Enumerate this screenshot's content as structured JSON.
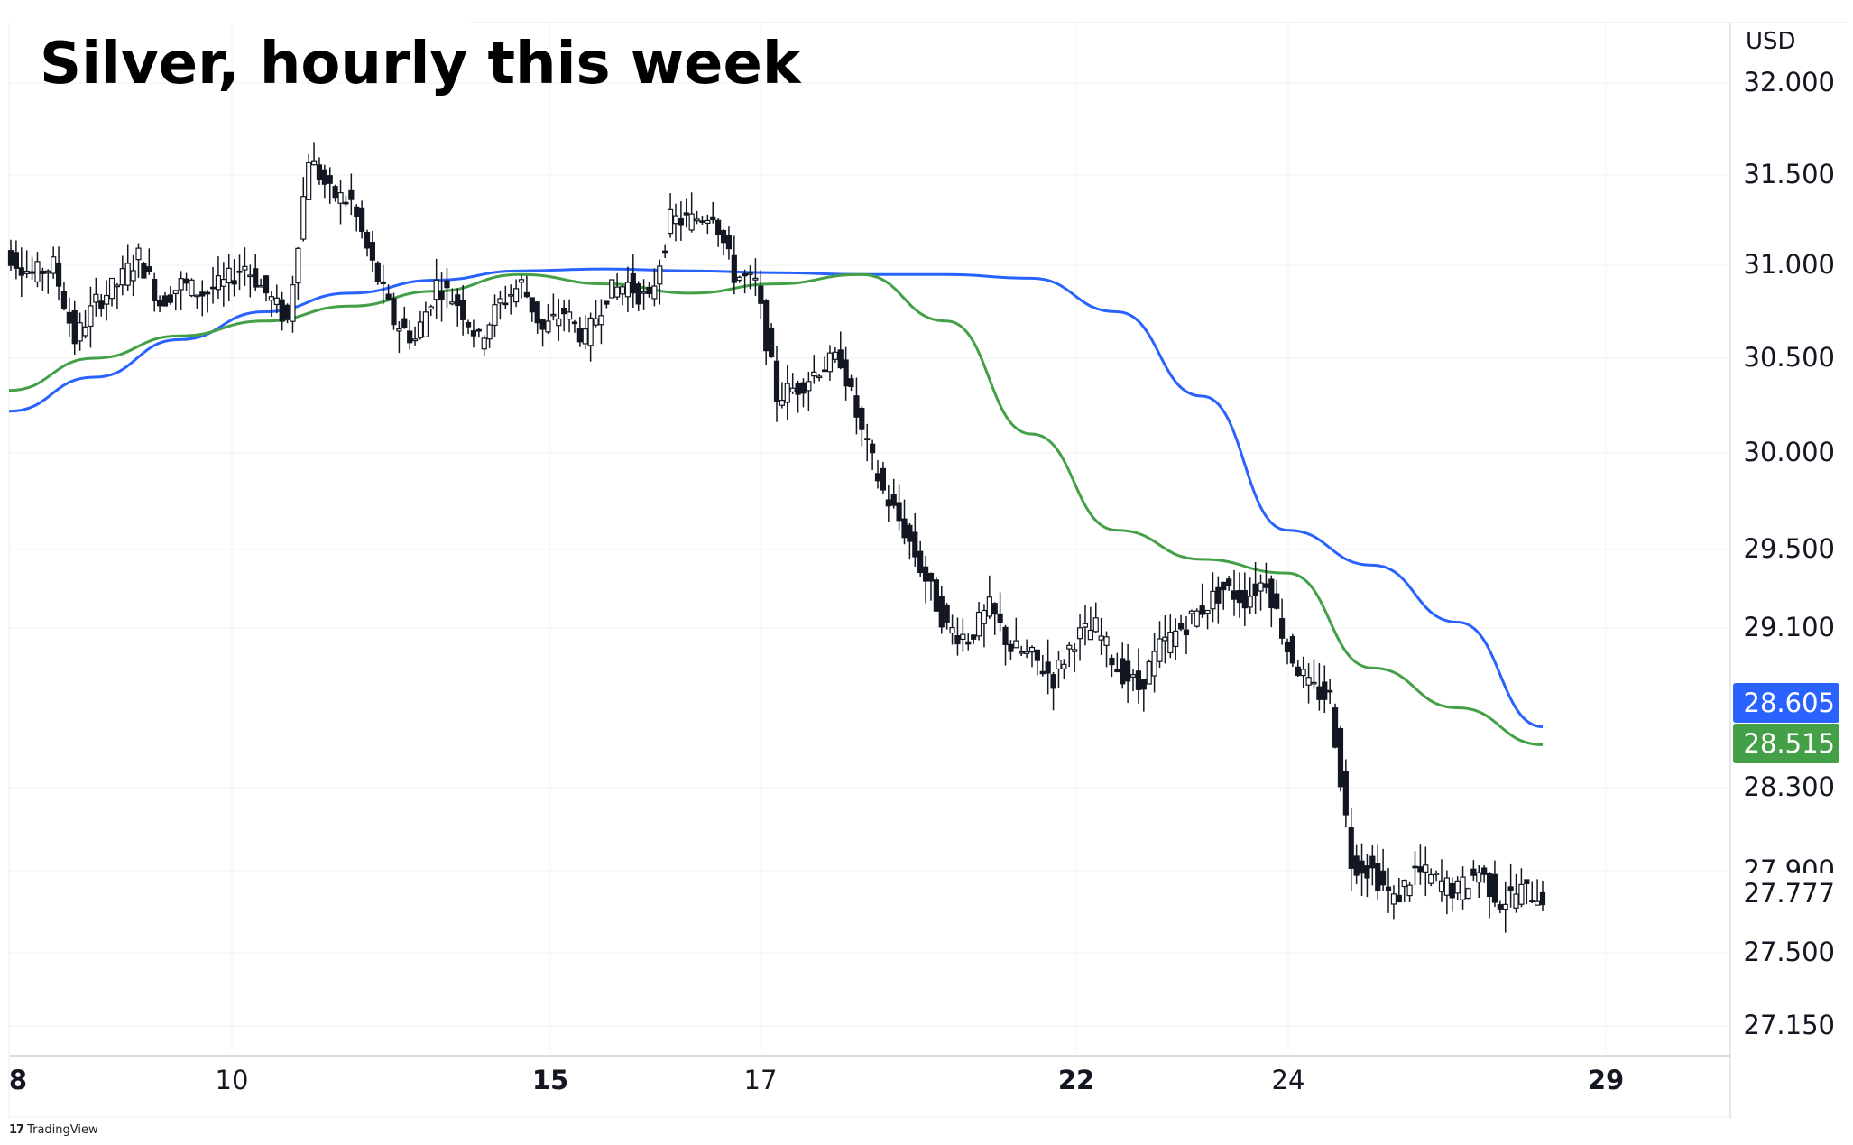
{
  "chart_data": {
    "type": "candlestick",
    "title": "Silver, hourly this week",
    "currency": "USD",
    "y_ticks": [
      "32.000",
      "31.500",
      "31.000",
      "30.500",
      "30.000",
      "29.500",
      "29.100",
      "28.300",
      "27.900",
      "27.500",
      "27.150"
    ],
    "x_ticks": [
      {
        "label": "8",
        "bold": true
      },
      {
        "label": "10",
        "bold": false
      },
      {
        "label": "15",
        "bold": true
      },
      {
        "label": "17",
        "bold": false
      },
      {
        "label": "22",
        "bold": true
      },
      {
        "label": "24",
        "bold": false
      },
      {
        "label": "29",
        "bold": true
      }
    ],
    "series": [
      {
        "color": "#2962ff",
        "last_value": "28.605",
        "values": [
          30.22,
          30.4,
          30.6,
          30.75,
          30.85,
          30.92,
          30.97,
          30.98,
          30.97,
          30.96,
          30.95,
          30.95,
          30.93,
          30.75,
          30.3,
          29.6,
          29.42,
          29.13,
          28.605
        ]
      },
      {
        "color": "#43a047",
        "last_value": "28.515",
        "values": [
          30.33,
          30.5,
          30.62,
          30.7,
          30.78,
          30.86,
          30.95,
          30.9,
          30.85,
          30.9,
          30.95,
          30.7,
          30.1,
          29.6,
          29.45,
          29.38,
          28.9,
          28.7,
          28.515
        ]
      }
    ],
    "price_series": [
      {
        "close": 31.05
      },
      {
        "close": 30.95
      },
      {
        "close": 31.0
      },
      {
        "close": 30.6
      },
      {
        "close": 30.8
      },
      {
        "close": 30.9
      },
      {
        "close": 31.05
      },
      {
        "close": 30.8
      },
      {
        "close": 30.9
      },
      {
        "close": 30.85
      },
      {
        "close": 30.9
      },
      {
        "close": 31.0
      },
      {
        "close": 30.85
      },
      {
        "close": 30.7
      },
      {
        "close": 31.6
      },
      {
        "close": 31.4
      },
      {
        "close": 31.35
      },
      {
        "close": 31.0
      },
      {
        "close": 30.7
      },
      {
        "close": 30.6
      },
      {
        "close": 30.9
      },
      {
        "close": 30.8
      },
      {
        "close": 30.6
      },
      {
        "close": 30.8
      },
      {
        "close": 30.9
      },
      {
        "close": 30.65
      },
      {
        "close": 30.75
      },
      {
        "close": 30.6
      },
      {
        "close": 30.85
      },
      {
        "close": 30.9
      },
      {
        "close": 30.8
      },
      {
        "close": 31.25
      },
      {
        "close": 31.25
      },
      {
        "close": 31.3
      },
      {
        "close": 30.95
      },
      {
        "close": 30.9
      },
      {
        "close": 30.3
      },
      {
        "close": 30.35
      },
      {
        "close": 30.45
      },
      {
        "close": 30.5
      },
      {
        "close": 30.1
      },
      {
        "close": 29.8
      },
      {
        "close": 29.6
      },
      {
        "close": 29.35
      },
      {
        "close": 29.1
      },
      {
        "close": 29.05
      },
      {
        "close": 29.2
      },
      {
        "close": 29.0
      },
      {
        "close": 28.95
      },
      {
        "close": 28.85
      },
      {
        "close": 29.05
      },
      {
        "close": 29.1
      },
      {
        "close": 28.9
      },
      {
        "close": 28.8
      },
      {
        "close": 29.0
      },
      {
        "close": 29.1
      },
      {
        "close": 29.2
      },
      {
        "close": 29.3
      },
      {
        "close": 29.25
      },
      {
        "close": 29.35
      },
      {
        "close": 29.0
      },
      {
        "close": 28.8
      },
      {
        "close": 28.75
      },
      {
        "close": 27.95
      },
      {
        "close": 27.9
      },
      {
        "close": 27.75
      },
      {
        "close": 27.9
      },
      {
        "close": 27.85
      },
      {
        "close": 27.8
      },
      {
        "close": 27.9
      },
      {
        "close": 27.75
      },
      {
        "close": 27.8
      },
      {
        "close": 27.777
      }
    ],
    "current_price": "27.777",
    "ylim": [
      27.05,
      32.2
    ],
    "grid": true
  },
  "branding": {
    "name": "TradingView"
  }
}
